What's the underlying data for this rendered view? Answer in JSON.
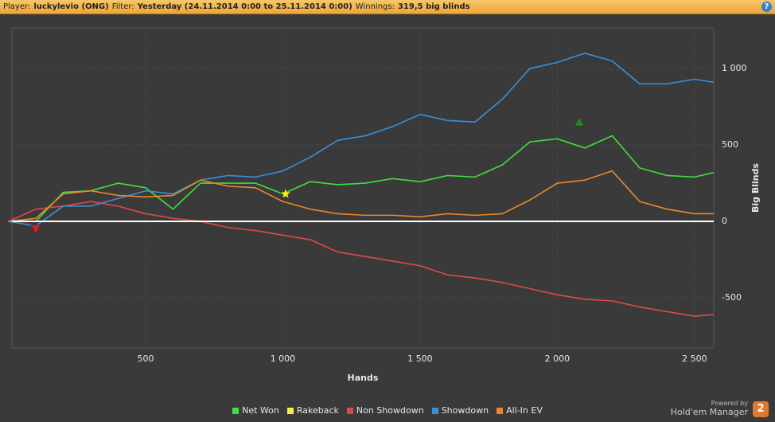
{
  "header": {
    "player_label": "Player:",
    "player": "luckylevio (ONG)",
    "filter_label": "Filter:",
    "filter": "Yesterday (24.11.2014 0:00 to 25.11.2014 0:00)",
    "winnings_label": "Winnings:",
    "winnings": "319,5 big blinds",
    "help": "?"
  },
  "branding": {
    "powered": "Powered by",
    "product": "Hold'em Manager",
    "version": "2"
  },
  "chart_data": {
    "type": "line",
    "x_label": "Hands",
    "y_label": "Big Blinds",
    "x": [
      0,
      100,
      200,
      300,
      400,
      500,
      600,
      700,
      800,
      900,
      1000,
      1100,
      1200,
      1300,
      1400,
      1500,
      1600,
      1700,
      1800,
      1900,
      2000,
      2100,
      2200,
      2300,
      2400,
      2500,
      2570
    ],
    "series": [
      {
        "name": "Net Won",
        "color": "#3ee03e",
        "values": [
          0,
          0,
          190,
          200,
          250,
          220,
          80,
          250,
          250,
          250,
          180,
          260,
          240,
          250,
          280,
          260,
          300,
          290,
          370,
          520,
          540,
          480,
          560,
          350,
          300,
          290,
          320
        ]
      },
      {
        "name": "Rakeback",
        "color": "#f0f040",
        "values": [
          0,
          0,
          0,
          0,
          0,
          0,
          0,
          0,
          0,
          0,
          0,
          0,
          0,
          0,
          0,
          0,
          0,
          0,
          0,
          0,
          0,
          0,
          0,
          0,
          0,
          0,
          0
        ]
      },
      {
        "name": "Non Showdown",
        "color": "#e04848",
        "values": [
          0,
          80,
          100,
          130,
          100,
          50,
          20,
          0,
          -40,
          -60,
          -90,
          -120,
          -200,
          -230,
          -260,
          -290,
          -350,
          -370,
          -400,
          -440,
          -480,
          -510,
          -520,
          -560,
          -590,
          -620,
          -610
        ]
      },
      {
        "name": "Showdown",
        "color": "#3a8fd8",
        "values": [
          0,
          -30,
          100,
          100,
          150,
          200,
          180,
          270,
          300,
          290,
          330,
          420,
          530,
          560,
          620,
          700,
          660,
          650,
          800,
          1000,
          1040,
          1100,
          1050,
          900,
          900,
          930,
          910
        ]
      },
      {
        "name": "All-In EV",
        "color": "#e8882a",
        "values": [
          0,
          20,
          180,
          200,
          170,
          160,
          170,
          270,
          230,
          220,
          130,
          80,
          50,
          40,
          40,
          30,
          50,
          40,
          50,
          140,
          250,
          270,
          330,
          130,
          80,
          50,
          50
        ]
      }
    ],
    "markers": [
      {
        "x": 100,
        "y": -50,
        "shape": "triangle-down",
        "color": "#e02020"
      },
      {
        "x": 1010,
        "y": 180,
        "shape": "star",
        "color": "#f0f020"
      },
      {
        "x": 2080,
        "y": 650,
        "shape": "triangle-up",
        "color": "#1a8a1a"
      }
    ],
    "xlim": [
      13,
      2570
    ],
    "ylim": [
      -828,
      1266
    ],
    "xticks": [
      500,
      {
        "value": 1000,
        "label": "1 000"
      },
      {
        "value": 1500,
        "label": "1 500"
      },
      {
        "value": 2000,
        "label": "2 000"
      },
      {
        "value": 2500,
        "label": "2 500"
      }
    ],
    "yticks": [
      -500,
      0,
      500,
      {
        "value": 1000,
        "label": "1 000"
      }
    ],
    "grid": true,
    "legend": "bottom"
  }
}
